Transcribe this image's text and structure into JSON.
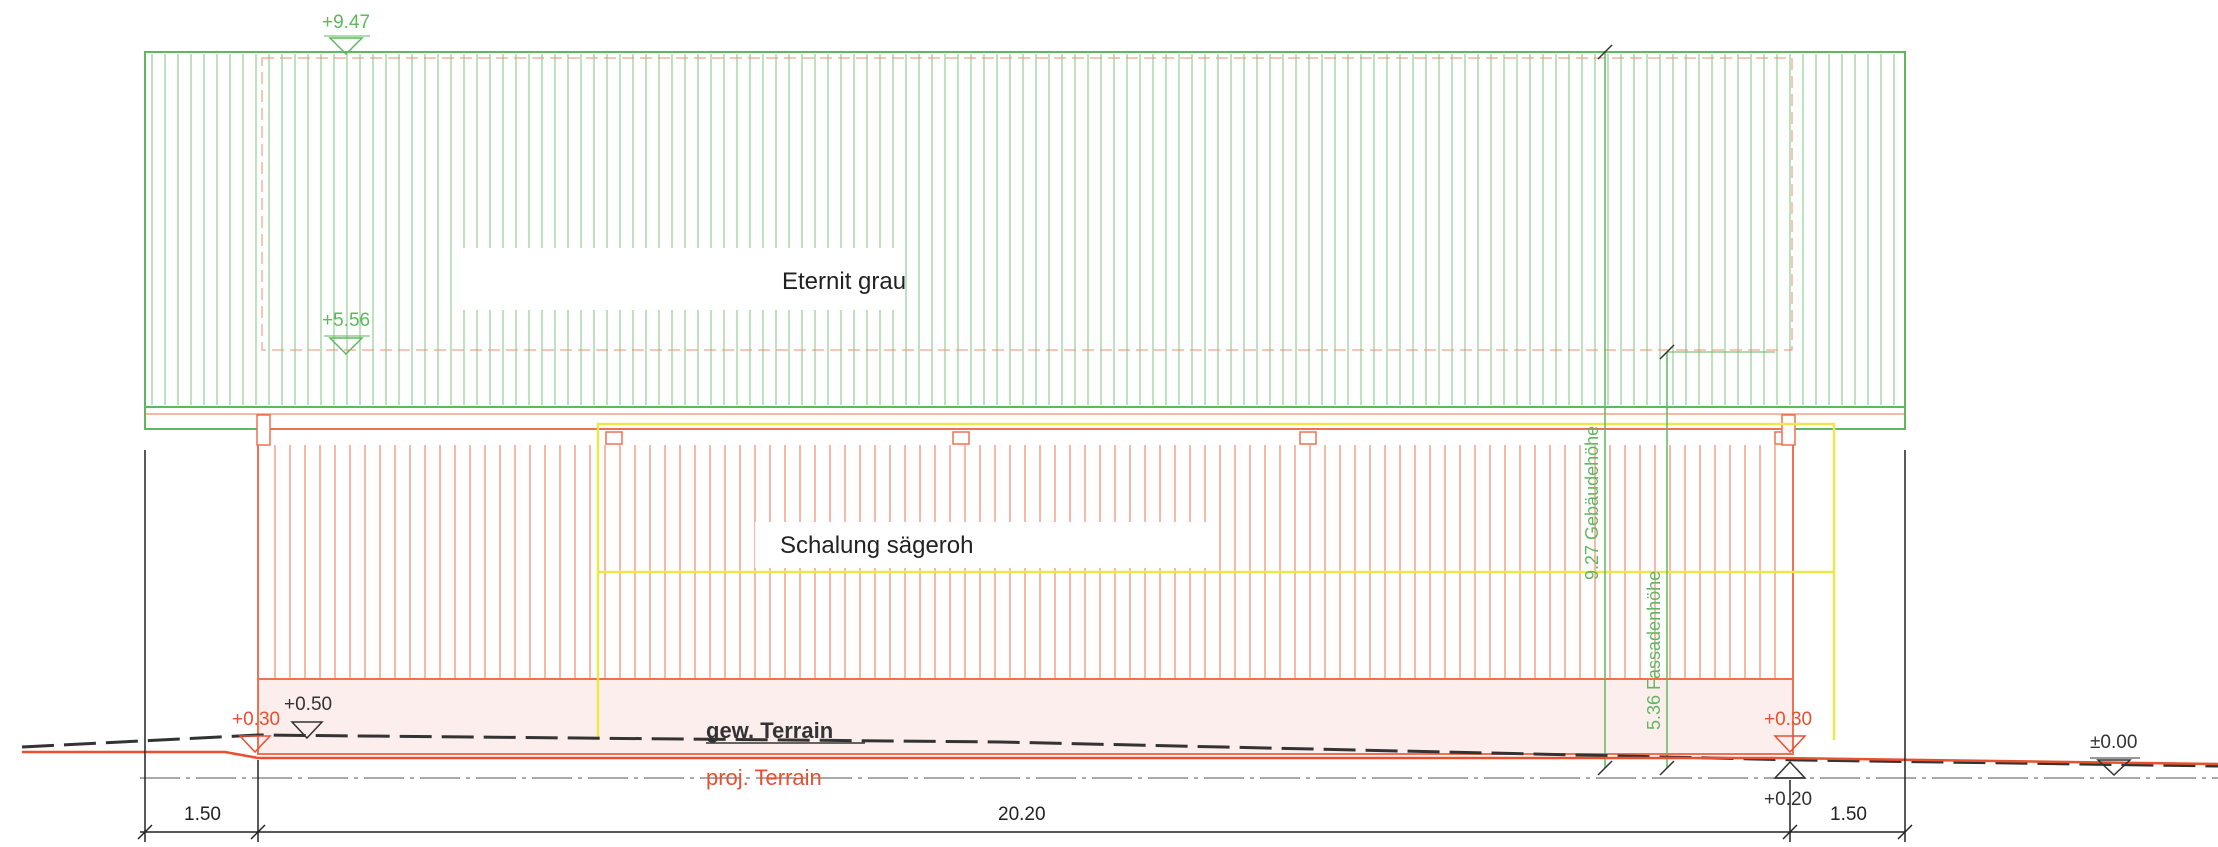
{
  "roof": {
    "material": "Eternit grau",
    "ridge_level": "+9.47",
    "eave_level": "+5.56"
  },
  "facade": {
    "material": "Schalung sägeroh"
  },
  "heights": {
    "building_height": "9.27 Gebäudehöhe",
    "facade_height": "5.36 Fassadenhöhe"
  },
  "levels": {
    "left_plinth": "+0.50",
    "left_terrain": "+0.30",
    "right_terrain": "+0.30",
    "right_below": "+0.20",
    "zero": "±0.00"
  },
  "terrain": {
    "existing": "gew. Terrain",
    "projected": "proj. Terrain"
  },
  "dimensions": {
    "left": "1.50",
    "middle": "20.20",
    "right": "1.50"
  },
  "colors": {
    "roof": "#5fb85f",
    "facade": "#f07050",
    "facade_fill": "#fdeeee",
    "yellow": "#ece84a",
    "terrain_proj": "#e85030",
    "terrain_existing": "#333333",
    "dimension": "#222222"
  }
}
